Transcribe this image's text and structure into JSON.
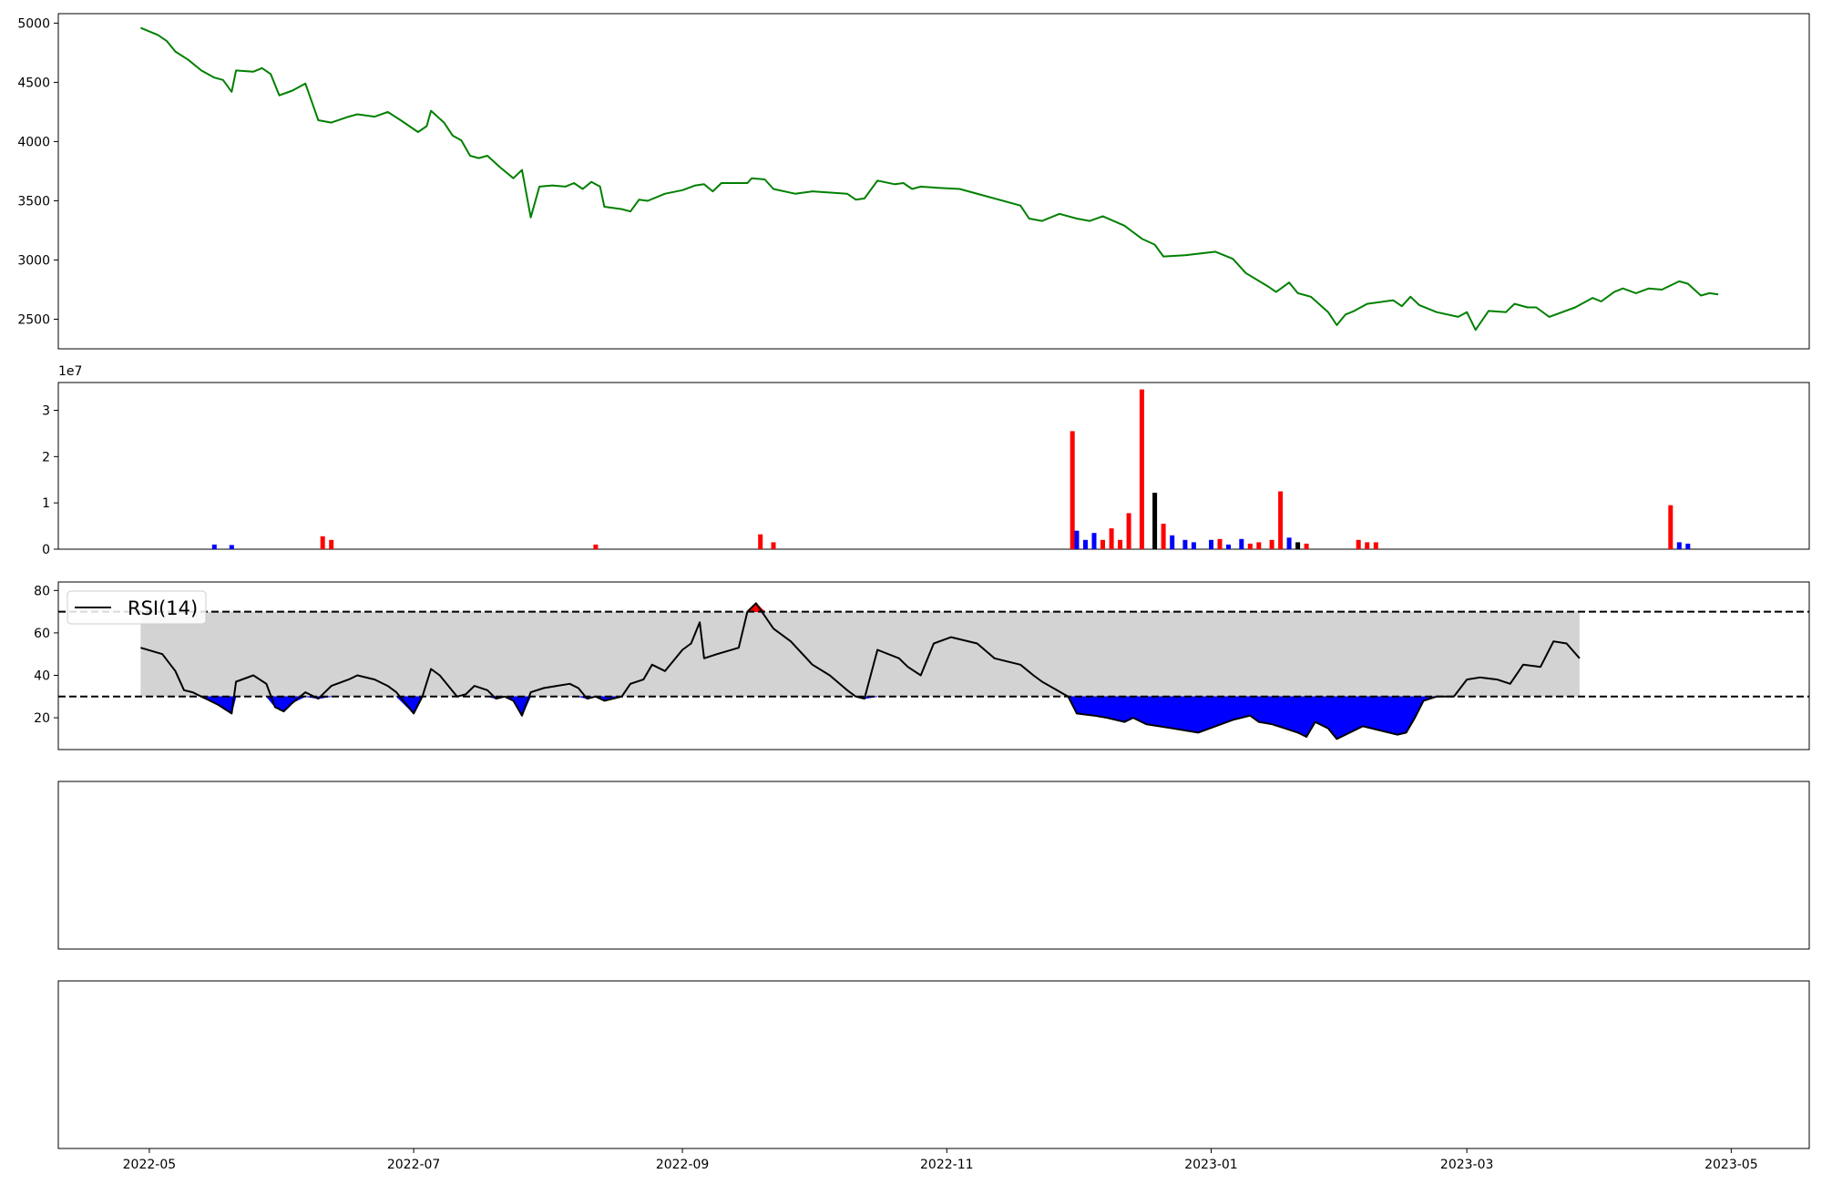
{
  "chart_data": [
    {
      "id": "price",
      "type": "line",
      "color": "#008000",
      "ylim": [
        2250,
        5080
      ],
      "yticks": [
        2500,
        3000,
        3500,
        4000,
        4500,
        5000
      ],
      "points": [
        [
          "2022-04-29",
          4960
        ],
        [
          "2022-05-03",
          4900
        ],
        [
          "2022-05-05",
          4850
        ],
        [
          "2022-05-07",
          4760
        ],
        [
          "2022-05-10",
          4690
        ],
        [
          "2022-05-13",
          4600
        ],
        [
          "2022-05-16",
          4540
        ],
        [
          "2022-05-18",
          4520
        ],
        [
          "2022-05-20",
          4420
        ],
        [
          "2022-05-21",
          4600
        ],
        [
          "2022-05-25",
          4590
        ],
        [
          "2022-05-27",
          4620
        ],
        [
          "2022-05-29",
          4570
        ],
        [
          "2022-05-31",
          4390
        ],
        [
          "2022-06-03",
          4430
        ],
        [
          "2022-06-06",
          4490
        ],
        [
          "2022-06-09",
          4180
        ],
        [
          "2022-06-12",
          4160
        ],
        [
          "2022-06-16",
          4210
        ],
        [
          "2022-06-18",
          4230
        ],
        [
          "2022-06-22",
          4210
        ],
        [
          "2022-06-25",
          4250
        ],
        [
          "2022-06-28",
          4180
        ],
        [
          "2022-07-02",
          4080
        ],
        [
          "2022-07-04",
          4130
        ],
        [
          "2022-07-05",
          4260
        ],
        [
          "2022-07-08",
          4160
        ],
        [
          "2022-07-10",
          4050
        ],
        [
          "2022-07-12",
          4010
        ],
        [
          "2022-07-14",
          3880
        ],
        [
          "2022-07-16",
          3860
        ],
        [
          "2022-07-18",
          3880
        ],
        [
          "2022-07-21",
          3780
        ],
        [
          "2022-07-24",
          3690
        ],
        [
          "2022-07-26",
          3760
        ],
        [
          "2022-07-28",
          3360
        ],
        [
          "2022-07-30",
          3620
        ],
        [
          "2022-08-02",
          3630
        ],
        [
          "2022-08-05",
          3620
        ],
        [
          "2022-08-07",
          3650
        ],
        [
          "2022-08-09",
          3600
        ],
        [
          "2022-08-11",
          3660
        ],
        [
          "2022-08-13",
          3620
        ],
        [
          "2022-08-14",
          3450
        ],
        [
          "2022-08-18",
          3430
        ],
        [
          "2022-08-20",
          3410
        ],
        [
          "2022-08-22",
          3510
        ],
        [
          "2022-08-24",
          3500
        ],
        [
          "2022-08-28",
          3560
        ],
        [
          "2022-09-01",
          3590
        ],
        [
          "2022-09-04",
          3630
        ],
        [
          "2022-09-06",
          3640
        ],
        [
          "2022-09-08",
          3580
        ],
        [
          "2022-09-10",
          3650
        ],
        [
          "2022-09-16",
          3650
        ],
        [
          "2022-09-17",
          3690
        ],
        [
          "2022-09-20",
          3680
        ],
        [
          "2022-09-22",
          3600
        ],
        [
          "2022-09-27",
          3560
        ],
        [
          "2022-10-01",
          3580
        ],
        [
          "2022-10-09",
          3560
        ],
        [
          "2022-10-11",
          3510
        ],
        [
          "2022-10-13",
          3520
        ],
        [
          "2022-10-16",
          3670
        ],
        [
          "2022-10-20",
          3640
        ],
        [
          "2022-10-22",
          3650
        ],
        [
          "2022-10-24",
          3600
        ],
        [
          "2022-10-26",
          3620
        ],
        [
          "2022-10-30",
          3610
        ],
        [
          "2022-11-04",
          3600
        ],
        [
          "2022-11-09",
          3550
        ],
        [
          "2022-11-18",
          3460
        ],
        [
          "2022-11-20",
          3350
        ],
        [
          "2022-11-23",
          3330
        ],
        [
          "2022-11-27",
          3390
        ],
        [
          "2022-12-01",
          3350
        ],
        [
          "2022-12-04",
          3330
        ],
        [
          "2022-12-07",
          3370
        ],
        [
          "2022-12-12",
          3290
        ],
        [
          "2022-12-16",
          3180
        ],
        [
          "2022-12-19",
          3130
        ],
        [
          "2022-12-21",
          3030
        ],
        [
          "2022-12-26",
          3040
        ],
        [
          "2023-01-02",
          3070
        ],
        [
          "2023-01-06",
          3010
        ],
        [
          "2023-01-09",
          2890
        ],
        [
          "2023-01-14",
          2780
        ],
        [
          "2023-01-16",
          2730
        ],
        [
          "2023-01-19",
          2810
        ],
        [
          "2023-01-21",
          2720
        ],
        [
          "2023-01-24",
          2690
        ],
        [
          "2023-01-28",
          2560
        ],
        [
          "2023-01-30",
          2450
        ],
        [
          "2023-02-01",
          2540
        ],
        [
          "2023-02-03",
          2570
        ],
        [
          "2023-02-06",
          2630
        ],
        [
          "2023-02-12",
          2660
        ],
        [
          "2023-02-14",
          2610
        ],
        [
          "2023-02-16",
          2690
        ],
        [
          "2023-02-18",
          2620
        ],
        [
          "2023-02-22",
          2560
        ],
        [
          "2023-02-27",
          2520
        ],
        [
          "2023-03-01",
          2560
        ],
        [
          "2023-03-03",
          2410
        ],
        [
          "2023-03-06",
          2570
        ],
        [
          "2023-03-10",
          2560
        ],
        [
          "2023-03-12",
          2630
        ],
        [
          "2023-03-15",
          2600
        ],
        [
          "2023-03-17",
          2600
        ],
        [
          "2023-03-20",
          2520
        ],
        [
          "2023-03-26",
          2600
        ],
        [
          "2023-03-30",
          2680
        ],
        [
          "2023-04-01",
          2650
        ],
        [
          "2023-04-04",
          2730
        ],
        [
          "2023-04-06",
          2760
        ],
        [
          "2023-04-09",
          2720
        ],
        [
          "2023-04-12",
          2760
        ],
        [
          "2023-04-15",
          2750
        ],
        [
          "2023-04-19",
          2820
        ],
        [
          "2023-04-21",
          2800
        ],
        [
          "2023-04-24",
          2700
        ],
        [
          "2023-04-26",
          2720
        ],
        [
          "2023-04-28",
          2710
        ]
      ]
    },
    {
      "id": "volume",
      "type": "bar",
      "multiplier": "1e7",
      "ylim": [
        0,
        3.6
      ],
      "yticks": [
        0,
        1,
        2,
        3
      ],
      "series": [
        {
          "name": "red",
          "color": "#ff0000"
        },
        {
          "name": "blue",
          "color": "#0000ff"
        },
        {
          "name": "black",
          "color": "#000000"
        }
      ],
      "bars": [
        [
          "2022-06-10",
          0.28,
          "red"
        ],
        [
          "2022-06-12",
          0.2,
          "red"
        ],
        [
          "2022-05-16",
          0.1,
          "blue"
        ],
        [
          "2022-05-20",
          0.09,
          "blue"
        ],
        [
          "2022-08-12",
          0.1,
          "red"
        ],
        [
          "2022-09-19",
          0.32,
          "red"
        ],
        [
          "2022-09-22",
          0.15,
          "red"
        ],
        [
          "2022-11-30",
          2.55,
          "red"
        ],
        [
          "2022-12-01",
          0.4,
          "blue"
        ],
        [
          "2022-12-03",
          0.2,
          "blue"
        ],
        [
          "2022-12-05",
          0.35,
          "blue"
        ],
        [
          "2022-12-07",
          0.2,
          "red"
        ],
        [
          "2022-12-09",
          0.45,
          "red"
        ],
        [
          "2022-12-11",
          0.2,
          "red"
        ],
        [
          "2022-12-13",
          0.78,
          "red"
        ],
        [
          "2022-12-16",
          3.45,
          "red"
        ],
        [
          "2022-12-19",
          1.22,
          "black"
        ],
        [
          "2022-12-21",
          0.55,
          "red"
        ],
        [
          "2022-12-23",
          0.3,
          "blue"
        ],
        [
          "2022-12-26",
          0.2,
          "blue"
        ],
        [
          "2022-12-28",
          0.15,
          "blue"
        ],
        [
          "2023-01-01",
          0.2,
          "blue"
        ],
        [
          "2023-01-03",
          0.22,
          "red"
        ],
        [
          "2023-01-05",
          0.1,
          "blue"
        ],
        [
          "2023-01-08",
          0.22,
          "blue"
        ],
        [
          "2023-01-10",
          0.12,
          "red"
        ],
        [
          "2023-01-12",
          0.15,
          "red"
        ],
        [
          "2023-01-15",
          0.2,
          "red"
        ],
        [
          "2023-01-17",
          1.25,
          "red"
        ],
        [
          "2023-01-19",
          0.25,
          "blue"
        ],
        [
          "2023-01-21",
          0.15,
          "black"
        ],
        [
          "2023-01-23",
          0.12,
          "red"
        ],
        [
          "2023-02-04",
          0.2,
          "red"
        ],
        [
          "2023-02-06",
          0.15,
          "red"
        ],
        [
          "2023-02-08",
          0.15,
          "red"
        ],
        [
          "2023-04-17",
          0.95,
          "red"
        ],
        [
          "2023-04-19",
          0.15,
          "blue"
        ],
        [
          "2023-04-21",
          0.12,
          "blue"
        ]
      ]
    },
    {
      "id": "rsi",
      "type": "line",
      "legend": [
        "RSI(14)"
      ],
      "color": "#000000",
      "ylim": [
        5,
        84
      ],
      "yticks": [
        20,
        40,
        60,
        80
      ],
      "thresholds": [
        30,
        70
      ],
      "points": [
        [
          "2022-04-29",
          53
        ],
        [
          "2022-05-04",
          50
        ],
        [
          "2022-05-07",
          42
        ],
        [
          "2022-05-09",
          33
        ],
        [
          "2022-05-11",
          32
        ],
        [
          "2022-05-13",
          30
        ],
        [
          "2022-05-15",
          28
        ],
        [
          "2022-05-17",
          26
        ],
        [
          "2022-05-20",
          22
        ],
        [
          "2022-05-21",
          37
        ],
        [
          "2022-05-25",
          40
        ],
        [
          "2022-05-28",
          36
        ],
        [
          "2022-05-30",
          25
        ],
        [
          "2022-06-01",
          23
        ],
        [
          "2022-06-03",
          27
        ],
        [
          "2022-06-06",
          32
        ],
        [
          "2022-06-09",
          29
        ],
        [
          "2022-06-12",
          35
        ],
        [
          "2022-06-16",
          38
        ],
        [
          "2022-06-18",
          40
        ],
        [
          "2022-06-22",
          38
        ],
        [
          "2022-06-25",
          35
        ],
        [
          "2022-06-27",
          32
        ],
        [
          "2022-07-01",
          22
        ],
        [
          "2022-07-03",
          30
        ],
        [
          "2022-07-05",
          43
        ],
        [
          "2022-07-07",
          40
        ],
        [
          "2022-07-09",
          35
        ],
        [
          "2022-07-11",
          30
        ],
        [
          "2022-07-13",
          31
        ],
        [
          "2022-07-15",
          35
        ],
        [
          "2022-07-18",
          33
        ],
        [
          "2022-07-20",
          29
        ],
        [
          "2022-07-22",
          30
        ],
        [
          "2022-07-24",
          28
        ],
        [
          "2022-07-26",
          21
        ],
        [
          "2022-07-28",
          32
        ],
        [
          "2022-07-31",
          34
        ],
        [
          "2022-08-03",
          35
        ],
        [
          "2022-08-06",
          36
        ],
        [
          "2022-08-08",
          34
        ],
        [
          "2022-08-10",
          29
        ],
        [
          "2022-08-12",
          30
        ],
        [
          "2022-08-14",
          28
        ],
        [
          "2022-08-18",
          30
        ],
        [
          "2022-08-20",
          36
        ],
        [
          "2022-08-23",
          38
        ],
        [
          "2022-08-25",
          45
        ],
        [
          "2022-08-28",
          42
        ],
        [
          "2022-09-01",
          52
        ],
        [
          "2022-09-03",
          55
        ],
        [
          "2022-09-05",
          65
        ],
        [
          "2022-09-06",
          48
        ],
        [
          "2022-09-09",
          50
        ],
        [
          "2022-09-14",
          53
        ],
        [
          "2022-09-16",
          70
        ],
        [
          "2022-09-18",
          74
        ],
        [
          "2022-09-20",
          68
        ],
        [
          "2022-09-22",
          62
        ],
        [
          "2022-09-26",
          56
        ],
        [
          "2022-10-01",
          45
        ],
        [
          "2022-10-05",
          40
        ],
        [
          "2022-10-09",
          33
        ],
        [
          "2022-10-11",
          30
        ],
        [
          "2022-10-13",
          29
        ],
        [
          "2022-10-16",
          52
        ],
        [
          "2022-10-21",
          48
        ],
        [
          "2022-10-23",
          44
        ],
        [
          "2022-10-26",
          40
        ],
        [
          "2022-10-29",
          55
        ],
        [
          "2022-11-02",
          58
        ],
        [
          "2022-11-08",
          55
        ],
        [
          "2022-11-12",
          48
        ],
        [
          "2022-11-18",
          45
        ],
        [
          "2022-11-21",
          40
        ],
        [
          "2022-11-23",
          37
        ],
        [
          "2022-11-29",
          30
        ],
        [
          "2022-12-01",
          22
        ],
        [
          "2022-12-05",
          21
        ],
        [
          "2022-12-08",
          20
        ],
        [
          "2022-12-12",
          18
        ],
        [
          "2022-12-14",
          20
        ],
        [
          "2022-12-17",
          17
        ],
        [
          "2022-12-20",
          16
        ],
        [
          "2022-12-23",
          15
        ],
        [
          "2022-12-26",
          14
        ],
        [
          "2022-12-29",
          13
        ],
        [
          "2023-01-02",
          16
        ],
        [
          "2023-01-06",
          19
        ],
        [
          "2023-01-10",
          21
        ],
        [
          "2023-01-12",
          18
        ],
        [
          "2023-01-15",
          17
        ],
        [
          "2023-01-18",
          15
        ],
        [
          "2023-01-21",
          13
        ],
        [
          "2023-01-23",
          11
        ],
        [
          "2023-01-25",
          18
        ],
        [
          "2023-01-28",
          15
        ],
        [
          "2023-01-30",
          10
        ],
        [
          "2023-02-02",
          13
        ],
        [
          "2023-02-05",
          16
        ],
        [
          "2023-02-09",
          14
        ],
        [
          "2023-02-13",
          12
        ],
        [
          "2023-02-15",
          13
        ],
        [
          "2023-02-17",
          20
        ],
        [
          "2023-02-19",
          28
        ],
        [
          "2023-02-22",
          30
        ],
        [
          "2023-02-26",
          30
        ],
        [
          "2023-03-01",
          38
        ],
        [
          "2023-03-04",
          39
        ],
        [
          "2023-03-08",
          38
        ],
        [
          "2023-03-11",
          36
        ],
        [
          "2023-03-14",
          45
        ],
        [
          "2023-03-18",
          44
        ],
        [
          "2023-03-21",
          56
        ],
        [
          "2023-03-24",
          55
        ],
        [
          "2023-03-27",
          48
        ]
      ]
    }
  ]
}
